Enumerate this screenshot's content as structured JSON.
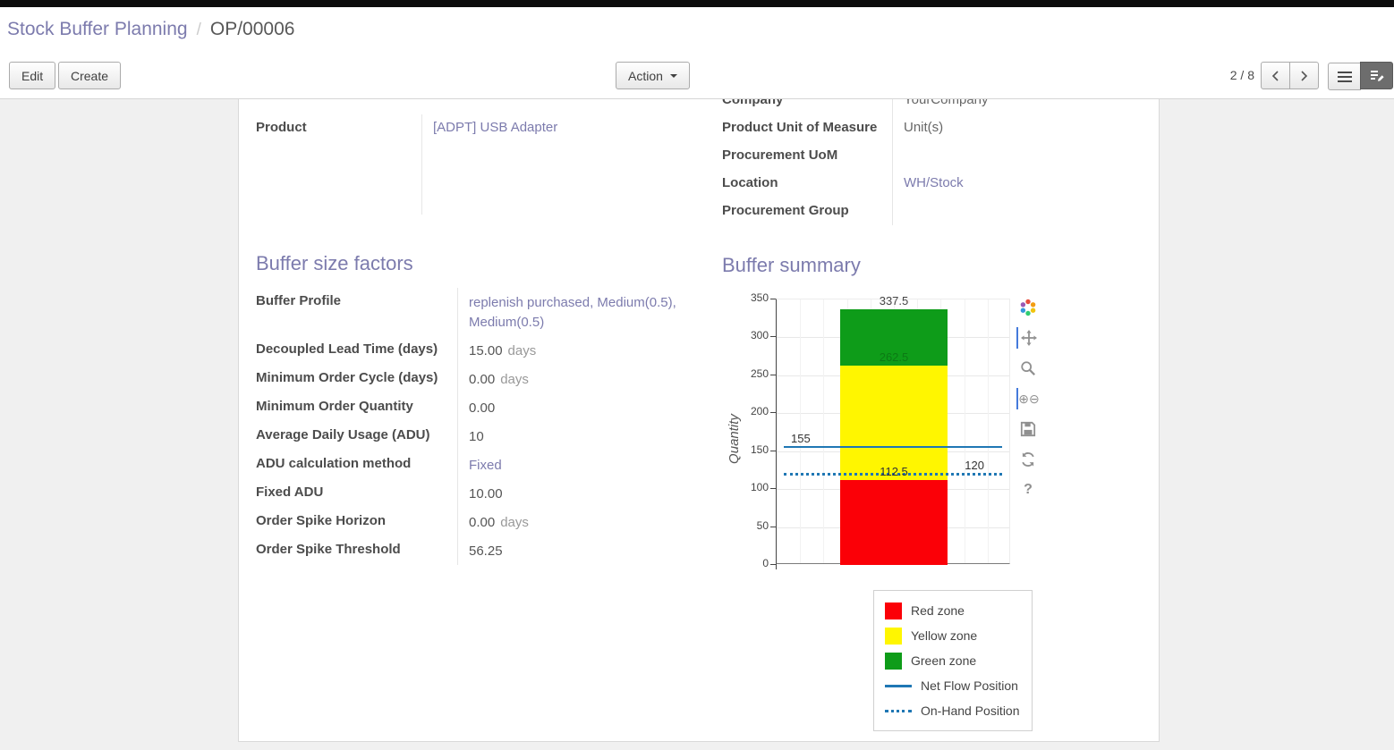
{
  "breadcrumb": {
    "section": "Stock Buffer Planning",
    "separator": "/",
    "record": "OP/00006"
  },
  "toolbar": {
    "edit": "Edit",
    "create": "Create",
    "action": "Action",
    "pager": "2 / 8"
  },
  "record": {
    "left_fields": [
      {
        "label": "Product",
        "value": "[ADPT] USB Adapter"
      }
    ],
    "right_fields": [
      {
        "label": "Company",
        "value": "YourCompany"
      },
      {
        "label": "Product Unit of Measure",
        "value": "Unit(s)"
      },
      {
        "label": "Procurement UoM",
        "value": ""
      },
      {
        "label": "Location",
        "value": "WH/Stock"
      },
      {
        "label": "Procurement Group",
        "value": ""
      }
    ]
  },
  "factors": {
    "title": "Buffer size factors",
    "rows": [
      {
        "label": "Buffer Profile",
        "value": "replenish purchased, Medium(0.5), Medium(0.5)",
        "suffix": ""
      },
      {
        "label": "Decoupled Lead Time (days)",
        "value": "15.00",
        "suffix": "days"
      },
      {
        "label": "Minimum Order Cycle (days)",
        "value": "0.00",
        "suffix": "days"
      },
      {
        "label": "Minimum Order Quantity",
        "value": "0.00",
        "suffix": ""
      },
      {
        "label": "Average Daily Usage (ADU)",
        "value": "10",
        "suffix": ""
      },
      {
        "label": "ADU calculation method",
        "value": "Fixed",
        "suffix": ""
      },
      {
        "label": "Fixed ADU",
        "value": "10.00",
        "suffix": ""
      },
      {
        "label": "Order Spike Horizon",
        "value": "0.00",
        "suffix": "days"
      },
      {
        "label": "Order Spike Threshold",
        "value": "56.25",
        "suffix": ""
      }
    ]
  },
  "summary": {
    "title": "Buffer summary"
  },
  "chart_data": {
    "type": "bar",
    "title": "",
    "xlabel": "",
    "ylabel": "Quantity",
    "ylim": [
      0,
      350
    ],
    "yticks": [
      0,
      50,
      100,
      150,
      200,
      250,
      300,
      350
    ],
    "grid": true,
    "legend_position": "bottom-right",
    "zones": [
      {
        "name": "Red zone",
        "from": 0,
        "to": 112.5,
        "color": "#fb0007"
      },
      {
        "name": "Yellow zone",
        "from": 112.5,
        "to": 262.5,
        "color": "#fff600"
      },
      {
        "name": "Green zone",
        "from": 262.5,
        "to": 337.5,
        "color": "#0e9c19"
      }
    ],
    "lines": [
      {
        "name": "Net Flow Position",
        "value": 155,
        "style": "solid",
        "color": "#1f77b4"
      },
      {
        "name": "On-Hand Position",
        "value": 120,
        "style": "dotted",
        "color": "#1f77b4"
      }
    ],
    "annotations": [
      {
        "text": "337.5",
        "value": 337.5,
        "align": "center",
        "color": "#444444"
      },
      {
        "text": "262.5",
        "value": 262.5,
        "align": "center",
        "color": "#0c7a14"
      },
      {
        "text": "112.5",
        "value": 112.5,
        "align": "center",
        "color": "#333333"
      },
      {
        "text": "155",
        "value": 155,
        "align": "left",
        "color": "#333333"
      },
      {
        "text": "120",
        "value": 120,
        "align": "right",
        "color": "#333333"
      }
    ],
    "legend": [
      {
        "label": "Red zone",
        "swatch": "square",
        "color": "#fb0007"
      },
      {
        "label": "Yellow zone",
        "swatch": "square",
        "color": "#fff600"
      },
      {
        "label": "Green zone",
        "swatch": "square",
        "color": "#0e9c19"
      },
      {
        "label": "Net Flow Position",
        "swatch": "line",
        "color": "#1f77b4"
      },
      {
        "label": "On-Hand Position",
        "swatch": "dotted",
        "color": "#1f77b4"
      }
    ]
  }
}
